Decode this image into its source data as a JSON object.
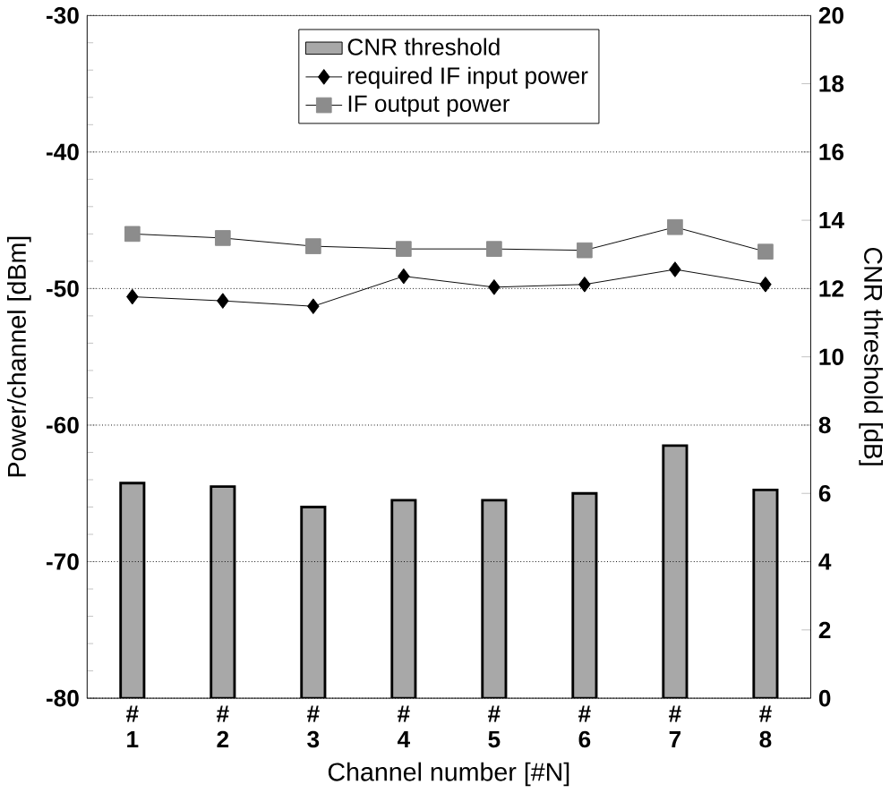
{
  "chart_data": {
    "type": "line",
    "xlabel": "Channel number [#N]",
    "ylabel": "Power/channel [dBm]",
    "y2label": "CNR threshold [dB]",
    "categories": [
      "# 1",
      "# 2",
      "# 3",
      "# 4",
      "# 5",
      "# 6",
      "# 7",
      "# 8"
    ],
    "series": [
      {
        "name": "CNR threshold",
        "type": "bar",
        "axis": "y2",
        "color": "#a8a8a8",
        "values": [
          6.3,
          6.2,
          5.6,
          5.8,
          5.8,
          6.0,
          7.4,
          6.1
        ]
      },
      {
        "name": "required IF input power",
        "marker": "diamond",
        "color": "#000000",
        "values": [
          -50.6,
          -50.9,
          -51.3,
          -49.1,
          -49.9,
          -49.7,
          -48.6,
          -49.7
        ]
      },
      {
        "name": "IF output power",
        "marker": "square",
        "color": "#8c8c8c",
        "values": [
          -46.0,
          -46.3,
          -46.9,
          -47.1,
          -47.1,
          -47.2,
          -45.5,
          -47.3
        ]
      }
    ],
    "ylim": [
      -80,
      -30
    ],
    "yticks": [
      -80,
      -70,
      -60,
      -50,
      -40,
      -30
    ],
    "y2lim": [
      0,
      20
    ],
    "y2ticks": [
      0,
      2,
      4,
      6,
      8,
      10,
      12,
      14,
      16,
      18,
      20
    ],
    "grid": "y",
    "legend": "top"
  }
}
